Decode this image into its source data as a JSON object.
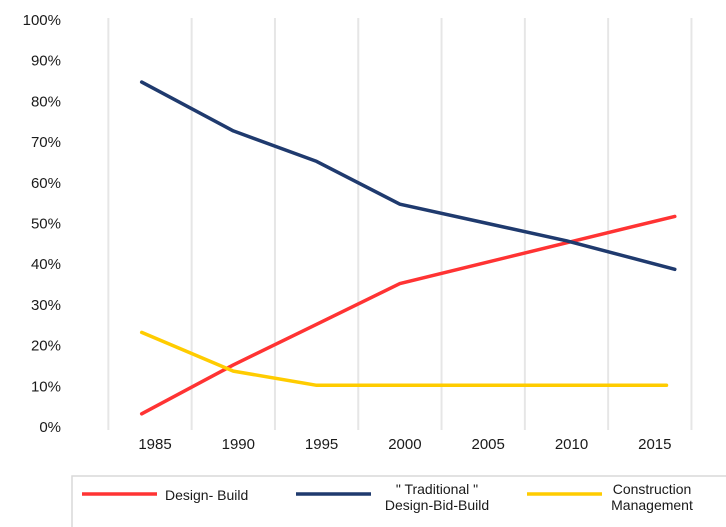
{
  "chart_data": {
    "type": "line",
    "x": [
      1985,
      1990,
      1995,
      2000,
      2005,
      2010,
      2015
    ],
    "series": [
      {
        "name": "Design- Build",
        "color": "#ff3333",
        "points": [
          [
            1984.5,
            3
          ],
          [
            1990,
            15
          ],
          [
            1995,
            25
          ],
          [
            2000,
            35
          ],
          [
            2005,
            40
          ],
          [
            2010,
            45
          ],
          [
            2016.5,
            51.5
          ]
        ]
      },
      {
        "name": "\" Traditional \"\nDesign-Bid-Build",
        "color": "#1f3a6e",
        "points": [
          [
            1984.5,
            84.5
          ],
          [
            1990,
            72.5
          ],
          [
            1995,
            65
          ],
          [
            2000,
            54.5
          ],
          [
            2005,
            50
          ],
          [
            2010,
            45.5
          ],
          [
            2016.5,
            38.5
          ]
        ]
      },
      {
        "name": "Construction\nManagement",
        "color": "#ffcc00",
        "points": [
          [
            1984.5,
            23
          ],
          [
            1990,
            13.5
          ],
          [
            1995,
            10
          ],
          [
            2000,
            10
          ],
          [
            2005,
            10
          ],
          [
            2010,
            10
          ],
          [
            2016,
            10
          ]
        ]
      }
    ],
    "xlim": [
      1980,
      2019
    ],
    "ylim": [
      0,
      100
    ],
    "yticks": [
      "0%",
      "10%",
      "20%",
      "30%",
      "40%",
      "50%",
      "60%",
      "70%",
      "80%",
      "90%",
      "100%"
    ],
    "xticks": [
      "1985",
      "1990",
      "1995",
      "2000",
      "2005",
      "2010",
      "2015"
    ],
    "grid": "vertical",
    "legend": "bottom"
  }
}
